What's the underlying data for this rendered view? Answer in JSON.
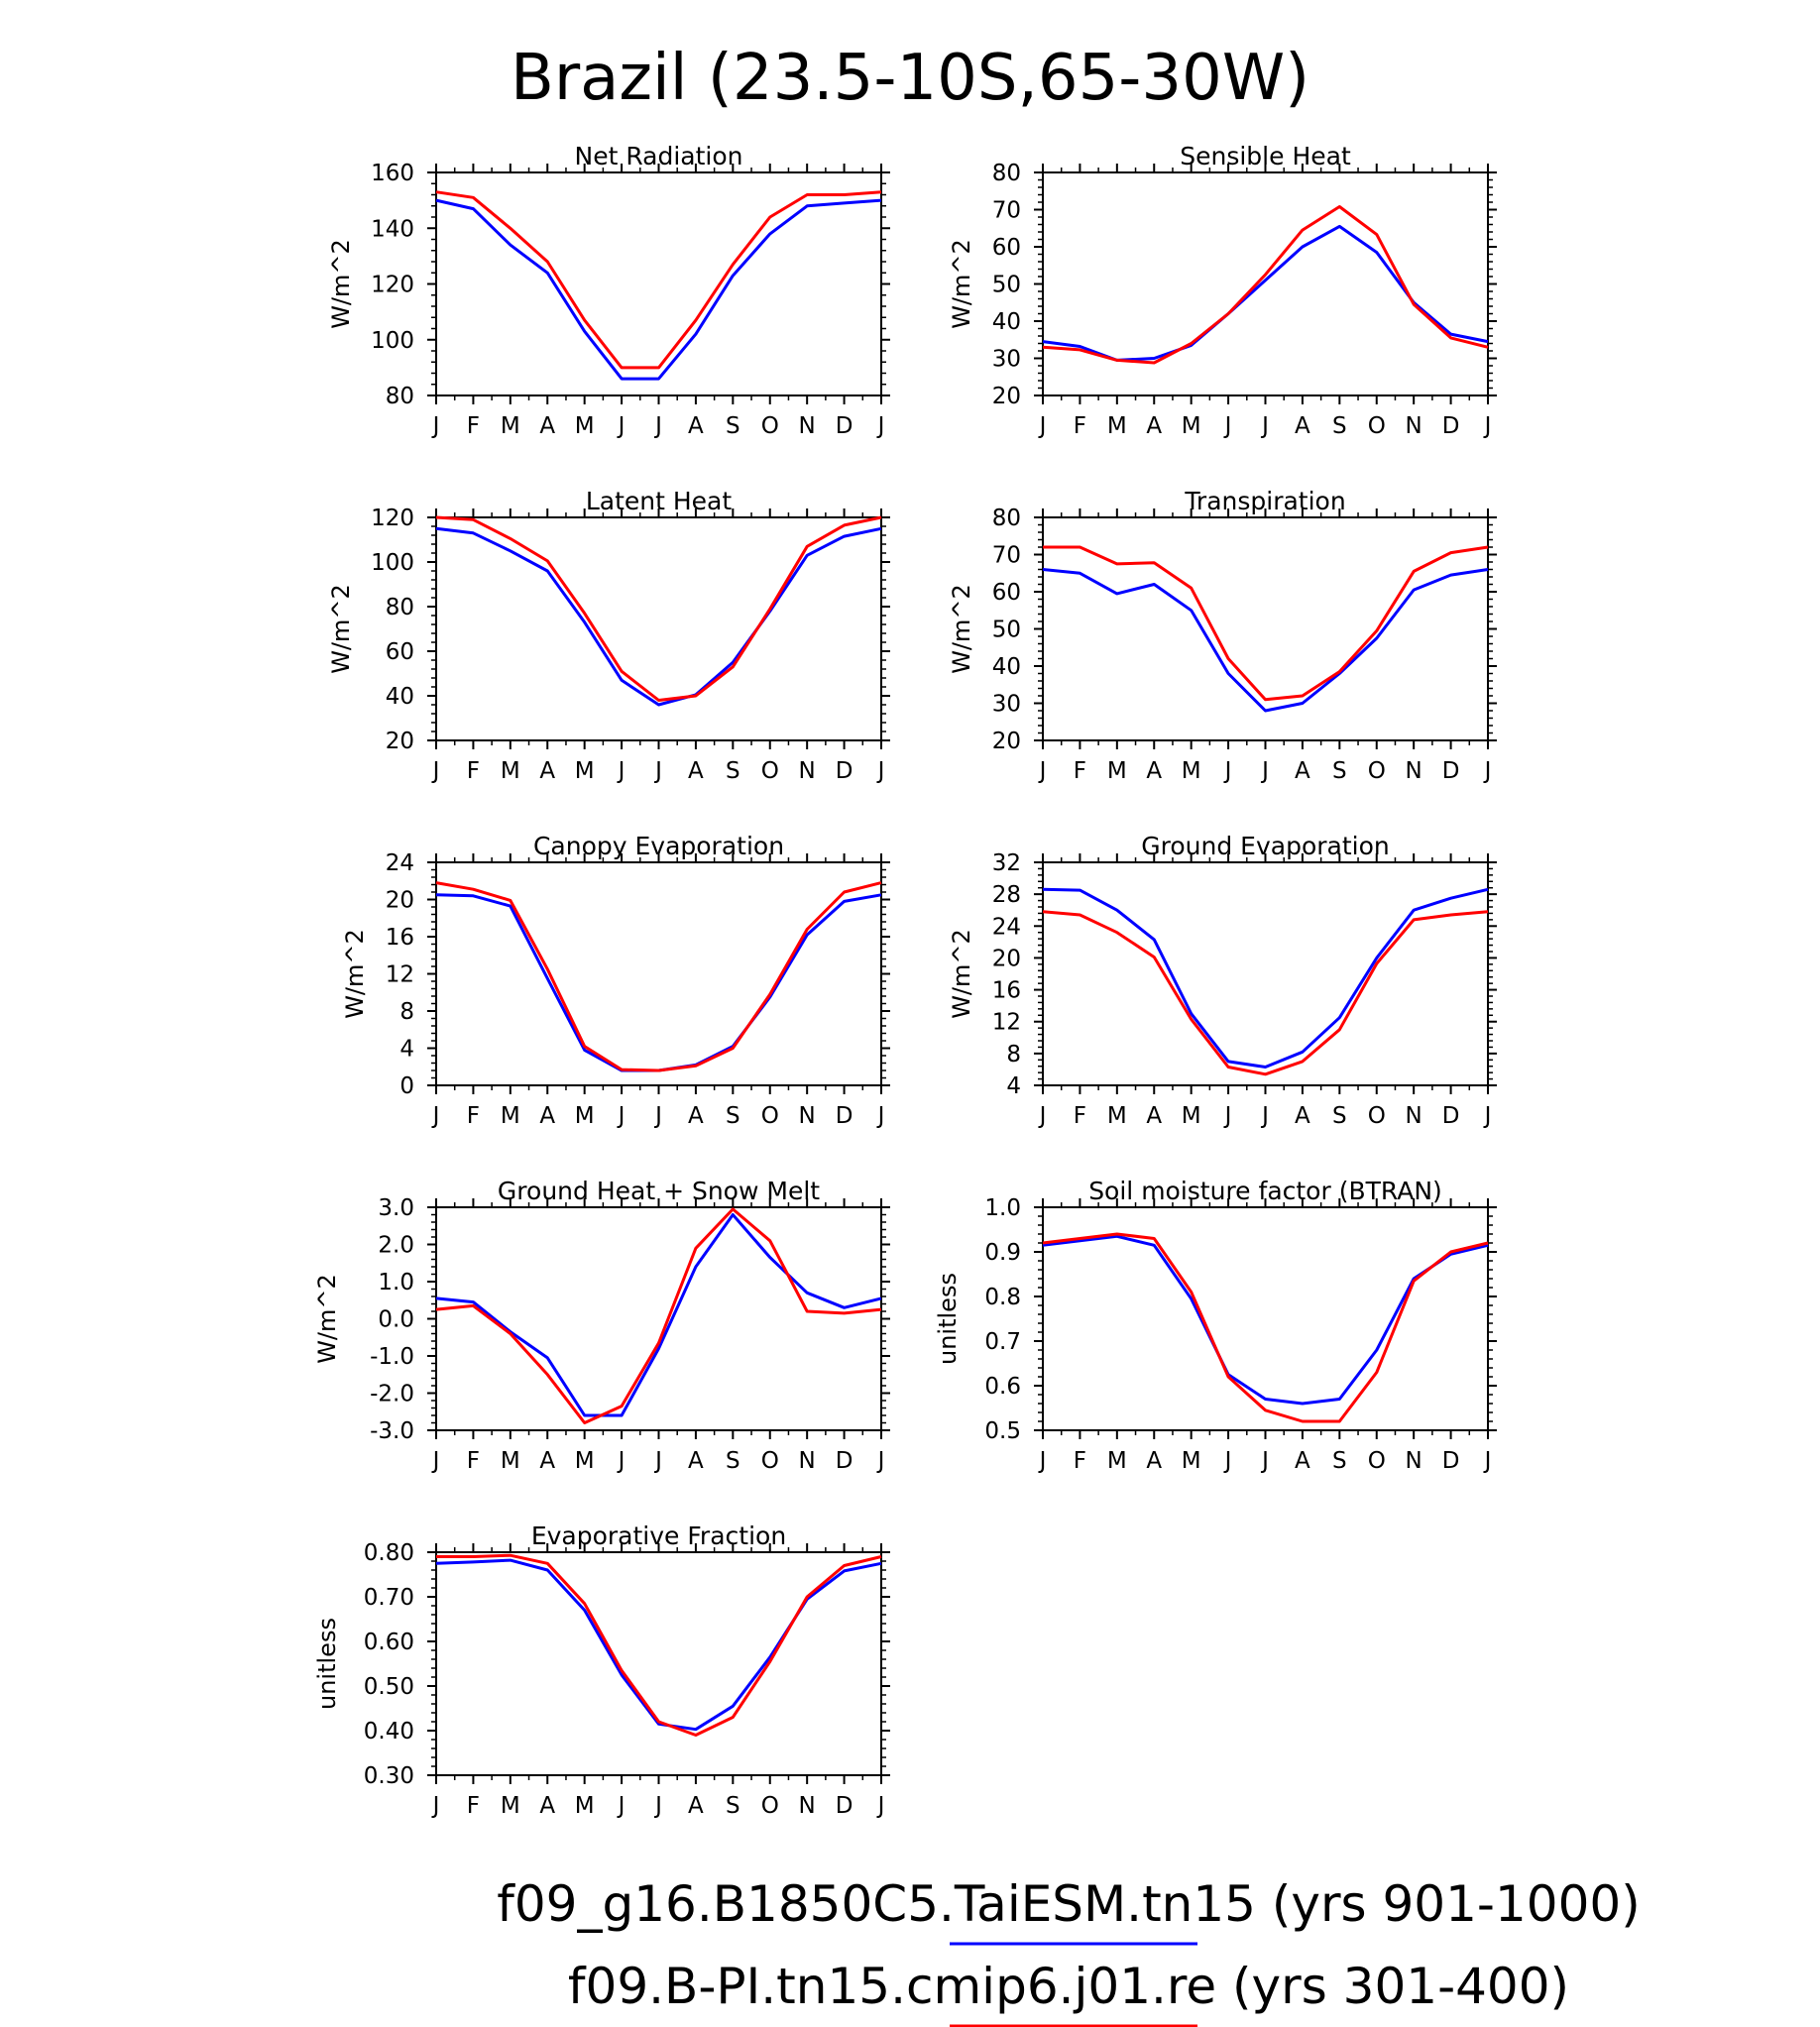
{
  "title": "Brazil (23.5-10S,65-30W)",
  "colors": {
    "blue": "#0000ff",
    "red": "#ff0000",
    "axis": "#000000"
  },
  "legend": [
    {
      "label": "f09_g16.B1850C5.TaiESM.tn15 (yrs 901-1000)",
      "color": "#0000ff"
    },
    {
      "label": "f09.B-PI.tn15.cmip6.j01.re (yrs 301-400)",
      "color": "#ff0000"
    }
  ],
  "chart_data": [
    {
      "type": "line",
      "title": "Net Radiation",
      "ylabel": "W/m^2",
      "categories": [
        "J",
        "F",
        "M",
        "A",
        "M",
        "J",
        "J",
        "A",
        "S",
        "O",
        "N",
        "D",
        "J"
      ],
      "ylim": [
        80,
        160
      ],
      "yticks": [
        "80",
        "100",
        "120",
        "140",
        "160"
      ],
      "series": [
        {
          "color": "#0000ff",
          "values": [
            150,
            147,
            134,
            124,
            103,
            86,
            86,
            102,
            123,
            138,
            148,
            149,
            150
          ]
        },
        {
          "color": "#ff0000",
          "values": [
            153,
            151,
            140,
            128,
            107,
            90,
            90,
            107,
            127,
            144,
            152,
            152,
            153
          ]
        }
      ]
    },
    {
      "type": "line",
      "title": "Sensible Heat",
      "ylabel": "W/m^2",
      "categories": [
        "J",
        "F",
        "M",
        "A",
        "M",
        "J",
        "J",
        "A",
        "S",
        "O",
        "N",
        "D",
        "J"
      ],
      "ylim": [
        20,
        80
      ],
      "yticks": [
        "20",
        "30",
        "40",
        "50",
        "60",
        "70",
        "80"
      ],
      "series": [
        {
          "color": "#0000ff",
          "values": [
            34.5,
            33.2,
            29.5,
            30,
            33.5,
            42,
            51,
            60,
            65.5,
            58.5,
            45,
            36.5,
            34.5
          ]
        },
        {
          "color": "#ff0000",
          "values": [
            33,
            32.3,
            29.5,
            28.8,
            34,
            42,
            52.5,
            64.5,
            70.8,
            63.3,
            44.5,
            35.5,
            33
          ]
        }
      ]
    },
    {
      "type": "line",
      "title": "Latent Heat",
      "ylabel": "W/m^2",
      "categories": [
        "J",
        "F",
        "M",
        "A",
        "M",
        "J",
        "J",
        "A",
        "S",
        "O",
        "N",
        "D",
        "J"
      ],
      "ylim": [
        20,
        120
      ],
      "yticks": [
        "20",
        "40",
        "60",
        "80",
        "100",
        "120"
      ],
      "series": [
        {
          "color": "#0000ff",
          "values": [
            115,
            113,
            105,
            96,
            73,
            47,
            36,
            40.5,
            55,
            78,
            103,
            111.5,
            115
          ]
        },
        {
          "color": "#ff0000",
          "values": [
            120,
            119,
            110.5,
            100.5,
            77,
            51,
            38,
            40,
            53,
            79,
            107,
            116.5,
            120
          ]
        }
      ]
    },
    {
      "type": "line",
      "title": "Transpiration",
      "ylabel": "W/m^2",
      "categories": [
        "J",
        "F",
        "M",
        "A",
        "M",
        "J",
        "J",
        "A",
        "S",
        "O",
        "N",
        "D",
        "J"
      ],
      "ylim": [
        20,
        80
      ],
      "yticks": [
        "20",
        "30",
        "40",
        "50",
        "60",
        "70",
        "80"
      ],
      "series": [
        {
          "color": "#0000ff",
          "values": [
            66,
            65,
            59.5,
            62,
            55,
            38,
            28,
            30,
            38,
            47.5,
            60.5,
            64.5,
            66
          ]
        },
        {
          "color": "#ff0000",
          "values": [
            72,
            72,
            67.5,
            67.8,
            61,
            42,
            31,
            32,
            38.5,
            49.5,
            65.5,
            70.5,
            72
          ]
        }
      ]
    },
    {
      "type": "line",
      "title": "Canopy Evaporation",
      "ylabel": "W/m^2",
      "categories": [
        "J",
        "F",
        "M",
        "A",
        "M",
        "J",
        "J",
        "A",
        "S",
        "O",
        "N",
        "D",
        "J"
      ],
      "ylim": [
        0,
        24
      ],
      "yticks": [
        "0",
        "4",
        "8",
        "12",
        "16",
        "20",
        "24"
      ],
      "series": [
        {
          "color": "#0000ff",
          "values": [
            20.5,
            20.4,
            19.3,
            11.5,
            3.8,
            1.6,
            1.6,
            2.2,
            4.2,
            9.5,
            16.2,
            19.8,
            20.5
          ]
        },
        {
          "color": "#ff0000",
          "values": [
            21.8,
            21.1,
            19.9,
            12.5,
            4.2,
            1.7,
            1.6,
            2.1,
            4,
            9.8,
            16.8,
            20.8,
            21.8
          ]
        }
      ]
    },
    {
      "type": "line",
      "title": "Ground Evaporation",
      "ylabel": "W/m^2",
      "categories": [
        "J",
        "F",
        "M",
        "A",
        "M",
        "J",
        "J",
        "A",
        "S",
        "O",
        "N",
        "D",
        "J"
      ],
      "ylim": [
        4,
        32
      ],
      "yticks": [
        "4",
        "8",
        "12",
        "16",
        "20",
        "24",
        "28",
        "32"
      ],
      "series": [
        {
          "color": "#0000ff",
          "values": [
            28.6,
            28.5,
            26,
            22.3,
            13,
            7,
            6.3,
            8.2,
            12.5,
            20,
            26,
            27.5,
            28.6
          ]
        },
        {
          "color": "#ff0000",
          "values": [
            25.8,
            25.4,
            23.2,
            20.1,
            12.3,
            6.3,
            5.4,
            7,
            11,
            19.3,
            24.8,
            25.4,
            25.8
          ]
        }
      ]
    },
    {
      "type": "line",
      "title": "Ground Heat + Snow Melt",
      "ylabel": "W/m^2",
      "categories": [
        "J",
        "F",
        "M",
        "A",
        "M",
        "J",
        "J",
        "A",
        "S",
        "O",
        "N",
        "D",
        "J"
      ],
      "ylim": [
        -3.0,
        3.0
      ],
      "yticks": [
        "-3.0",
        "-2.0",
        "-1.0",
        "0.0",
        "1.0",
        "2.0",
        "3.0"
      ],
      "series": [
        {
          "color": "#0000ff",
          "values": [
            0.55,
            0.45,
            -0.35,
            -1.05,
            -2.6,
            -2.6,
            -0.8,
            1.4,
            2.8,
            1.65,
            0.7,
            0.3,
            0.55
          ]
        },
        {
          "color": "#ff0000",
          "values": [
            0.25,
            0.35,
            -0.4,
            -1.5,
            -2.8,
            -2.35,
            -0.65,
            1.9,
            2.95,
            2.1,
            0.2,
            0.15,
            0.25
          ]
        }
      ]
    },
    {
      "type": "line",
      "title": "Soil moisture factor (BTRAN)",
      "ylabel": "unitless",
      "categories": [
        "J",
        "F",
        "M",
        "A",
        "M",
        "J",
        "J",
        "A",
        "S",
        "O",
        "N",
        "D",
        "J"
      ],
      "ylim": [
        0.5,
        1.0
      ],
      "yticks": [
        "0.5",
        "0.6",
        "0.7",
        "0.8",
        "0.9",
        "1.0"
      ],
      "series": [
        {
          "color": "#0000ff",
          "values": [
            0.915,
            0.925,
            0.935,
            0.915,
            0.795,
            0.625,
            0.57,
            0.56,
            0.57,
            0.68,
            0.84,
            0.895,
            0.915
          ]
        },
        {
          "color": "#ff0000",
          "values": [
            0.92,
            0.93,
            0.94,
            0.93,
            0.81,
            0.62,
            0.545,
            0.52,
            0.52,
            0.63,
            0.835,
            0.9,
            0.92
          ]
        }
      ]
    },
    {
      "type": "line",
      "title": "Evaporative Fraction",
      "ylabel": "unitless",
      "categories": [
        "J",
        "F",
        "M",
        "A",
        "M",
        "J",
        "J",
        "A",
        "S",
        "O",
        "N",
        "D",
        "J"
      ],
      "ylim": [
        0.3,
        0.8
      ],
      "yticks": [
        "0.30",
        "0.40",
        "0.50",
        "0.60",
        "0.70",
        "0.80"
      ],
      "series": [
        {
          "color": "#0000ff",
          "values": [
            0.775,
            0.778,
            0.782,
            0.76,
            0.67,
            0.525,
            0.415,
            0.403,
            0.455,
            0.565,
            0.695,
            0.758,
            0.775
          ]
        },
        {
          "color": "#ff0000",
          "values": [
            0.79,
            0.79,
            0.793,
            0.775,
            0.685,
            0.535,
            0.42,
            0.39,
            0.43,
            0.555,
            0.7,
            0.77,
            0.79
          ]
        }
      ]
    }
  ]
}
